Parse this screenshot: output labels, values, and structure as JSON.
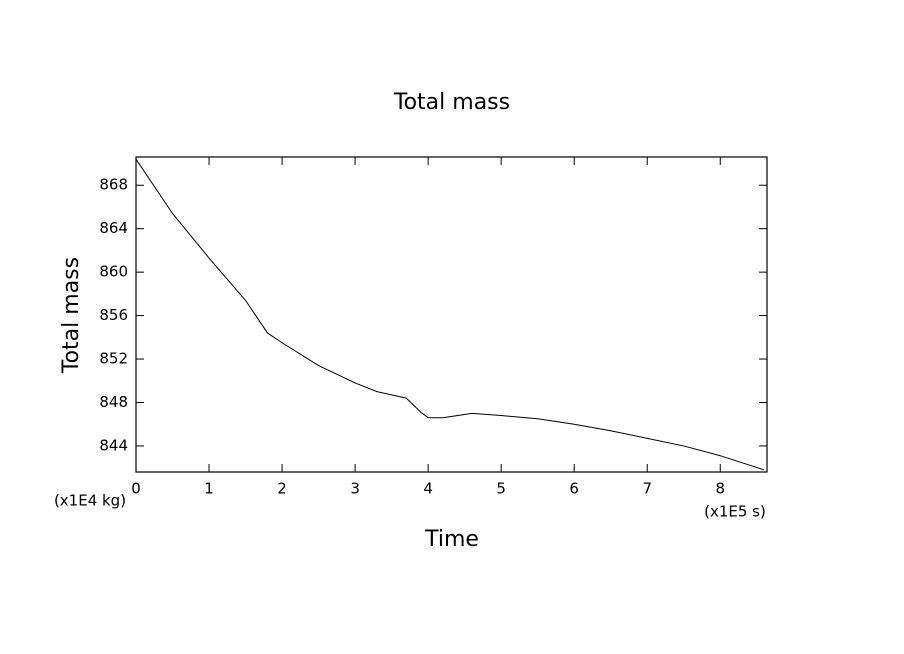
{
  "chart_data": {
    "type": "line",
    "title": "Total mass",
    "x_label": "Time",
    "y_label": "Total mass",
    "y_unit": "(x1E4 kg)",
    "x_unit": "(x1E5 s)",
    "x": [
      0,
      0.5,
      1,
      1.5,
      1.8,
      2,
      2.5,
      3,
      3.3,
      3.7,
      3.9,
      4.0,
      4.2,
      4.6,
      5.0,
      5.5,
      6.0,
      6.5,
      7.0,
      7.5,
      8.0,
      8.6
    ],
    "series": [
      {
        "name": "Total mass",
        "color": "#000000",
        "values": [
          870.4,
          865.4,
          861.3,
          857.4,
          854.4,
          853.5,
          851.4,
          849.8,
          849.0,
          848.4,
          847.1,
          846.6,
          846.6,
          847.0,
          846.8,
          846.5,
          846.0,
          845.4,
          844.7,
          844.0,
          843.1,
          841.8
        ]
      }
    ],
    "xlim": [
      0,
      8.64
    ],
    "xticks": [
      0,
      1,
      2,
      3,
      4,
      5,
      6,
      7,
      8
    ],
    "ylim": [
      841.6,
      870.6
    ],
    "yticks": [
      844,
      848,
      852,
      856,
      860,
      864,
      868
    ]
  }
}
